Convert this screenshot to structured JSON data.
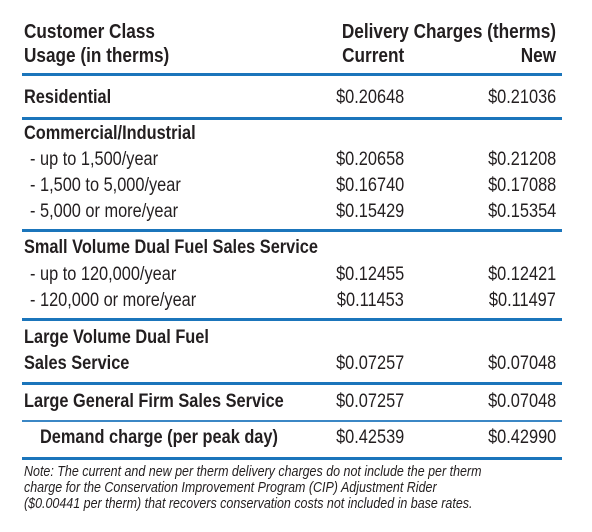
{
  "header": {
    "left_line1": "Customer Class",
    "left_line2": "Usage (in therms)",
    "right_line1": "Delivery Charges (therms)",
    "col_current": "Current",
    "col_new": "New"
  },
  "rows": {
    "residential": {
      "label": "Residential",
      "current": "$0.20648",
      "new": "$0.21036"
    },
    "ci_heading": "Commercial/Industrial",
    "ci_1": {
      "label": "- up to 1,500/year",
      "current": "$0.20658",
      "new": "$0.21208"
    },
    "ci_2": {
      "label": "- 1,500 to 5,000/year",
      "current": "$0.16740",
      "new": "$0.17088"
    },
    "ci_3": {
      "label": "- 5,000 or more/year",
      "current": "$0.15429",
      "new": "$0.15354"
    },
    "sv_heading": "Small Volume Dual Fuel Sales Service",
    "sv_1": {
      "label": "- up to 120,000/year",
      "current": "$0.12455",
      "new": "$0.12421"
    },
    "sv_2": {
      "label": "- 120,000 or more/year",
      "current": "$0.11453",
      "new": "$0.11497"
    },
    "lv_line1": "Large Volume Dual Fuel",
    "lv": {
      "label": "Sales Service",
      "current": "$0.07257",
      "new": "$0.07048"
    },
    "lg": {
      "label": "Large General Firm Sales Service",
      "current": "$0.07257",
      "new": "$0.07048"
    },
    "dc": {
      "label": "Demand charge (per peak day)",
      "current": "$0.42539",
      "new": "$0.42990"
    }
  },
  "note": {
    "line1": "Note: The current and new per therm delivery charges do not include the per therm",
    "line2": "charge for the Conservation Improvement Program (CIP) Adjustment Rider",
    "line3": "($0.00441 per therm) that recovers conservation costs not included in base rates."
  }
}
